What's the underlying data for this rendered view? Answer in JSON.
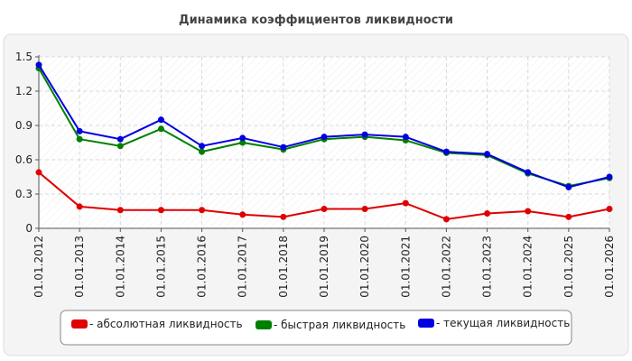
{
  "chart_data": {
    "type": "line",
    "title": "Динамика коэффициентов ликвидности",
    "xlabel": "",
    "ylabel": "",
    "categories": [
      "01.01.2012",
      "01.01.2013",
      "01.01.2014",
      "01.01.2015",
      "01.01.2016",
      "01.01.2017",
      "01.01.2018",
      "01.01.2019",
      "01.01.2020",
      "01.01.2021",
      "01.01.2022",
      "01.01.2023",
      "01.01.2024",
      "01.01.2025",
      "01.01.2026"
    ],
    "ylim": [
      0,
      1.5
    ],
    "yticks": [
      "0",
      "0.3",
      "0.6",
      "0.9",
      "1.2",
      "1.5"
    ],
    "grid": true,
    "legend_position": "bottom",
    "series": [
      {
        "name": "- абсолютная ликвидность",
        "color": "#e00000",
        "values": [
          0.49,
          0.19,
          0.16,
          0.16,
          0.16,
          0.12,
          0.1,
          0.17,
          0.17,
          0.22,
          0.08,
          0.13,
          0.15,
          0.1,
          0.17
        ]
      },
      {
        "name": "- быстрая ликвидность",
        "color": "#008000",
        "values": [
          1.4,
          0.78,
          0.72,
          0.87,
          0.67,
          0.75,
          0.69,
          0.78,
          0.8,
          0.77,
          0.66,
          0.64,
          0.48,
          0.37,
          0.44
        ]
      },
      {
        "name": "- текущая ликвидность",
        "color": "#0000e0",
        "values": [
          1.43,
          0.85,
          0.78,
          0.95,
          0.72,
          0.79,
          0.71,
          0.8,
          0.82,
          0.8,
          0.67,
          0.65,
          0.49,
          0.36,
          0.45
        ]
      }
    ]
  }
}
